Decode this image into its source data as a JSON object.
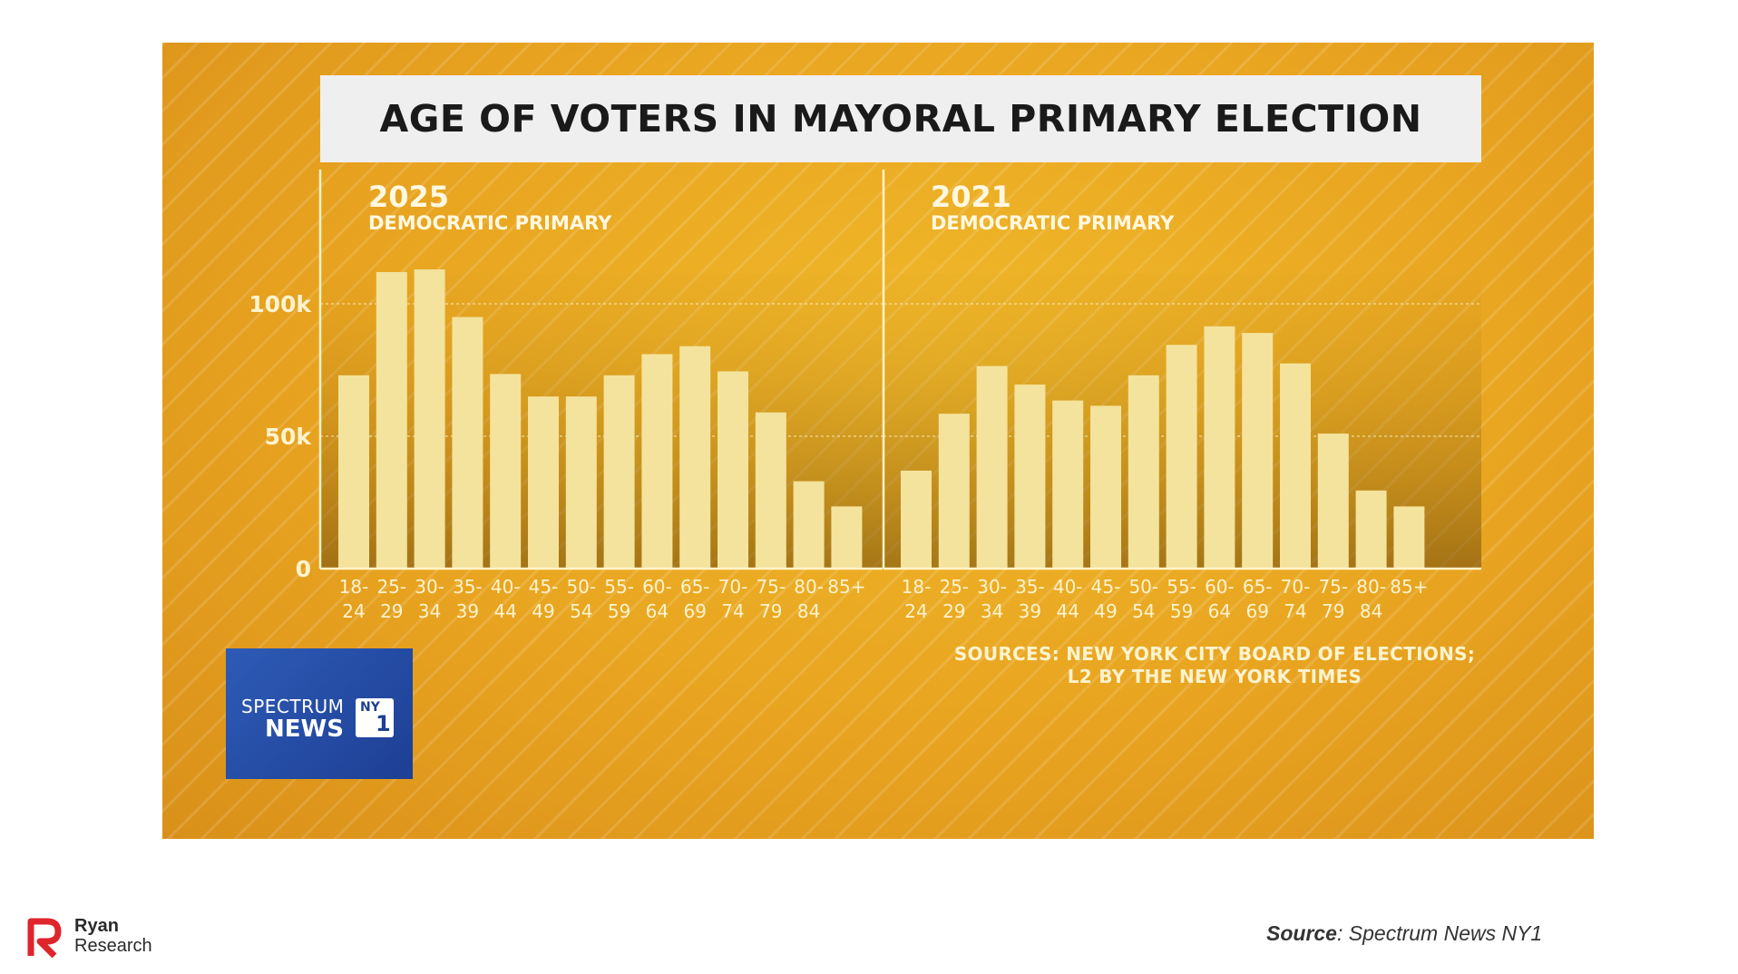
{
  "title": "AGE OF VOTERS IN MAYORAL PRIMARY ELECTION",
  "logo": {
    "line1": "SPECTRUM",
    "line2": "NEWS",
    "badge_top": "NY",
    "badge_num": "1",
    "color": "#1d3f94"
  },
  "sources_note": [
    "SOURCES: NEW YORK CITY BOARD OF ELECTIONS;",
    "L2 BY THE NEW YORK TIMES"
  ],
  "brand": {
    "name": "Ryan",
    "sub": "Research",
    "color": "#e0242b"
  },
  "footer": {
    "label": "Source",
    "text": ": Spectrum News NY1"
  },
  "chart_data": [
    {
      "type": "bar",
      "title": "2025",
      "subtitle": "DEMOCRATIC PRIMARY",
      "categories": [
        "18-24",
        "25-29",
        "30-34",
        "35-39",
        "40-44",
        "45-49",
        "50-54",
        "55-59",
        "60-64",
        "65-69",
        "70-74",
        "75-79",
        "80-84",
        "85+"
      ],
      "values": [
        73000,
        112000,
        113000,
        95000,
        73500,
        65000,
        65000,
        73000,
        81000,
        84000,
        74500,
        59000,
        33000,
        23500
      ],
      "yticks": [
        0,
        50000,
        100000
      ],
      "ytick_labels": [
        "0",
        "50k",
        "100k"
      ],
      "ylim": [
        0,
        120000
      ],
      "grid": true,
      "bar_color": "#f3e39d"
    },
    {
      "type": "bar",
      "title": "2021",
      "subtitle": "DEMOCRATIC PRIMARY",
      "categories": [
        "18-24",
        "25-29",
        "30-34",
        "35-39",
        "40-44",
        "45-49",
        "50-54",
        "55-59",
        "60-64",
        "65-69",
        "70-74",
        "75-79",
        "80-84",
        "85+"
      ],
      "values": [
        37000,
        58500,
        76500,
        69500,
        63500,
        61500,
        73000,
        84500,
        91500,
        89000,
        77500,
        51000,
        29500,
        23500
      ],
      "yticks": [
        0,
        50000,
        100000
      ],
      "ylim": [
        0,
        120000
      ],
      "grid": true,
      "bar_color": "#f3e39d"
    }
  ]
}
